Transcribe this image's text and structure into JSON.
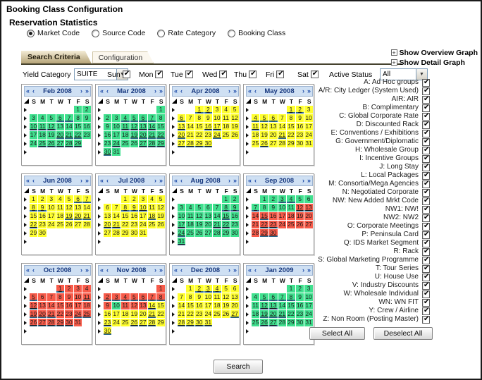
{
  "window": {
    "title": "Booking Class Configuration",
    "subtitle": "Reservation Statistics"
  },
  "radios": {
    "options": [
      {
        "label": "Market Code",
        "selected": true
      },
      {
        "label": "Source Code",
        "selected": false
      },
      {
        "label": "Rate Category",
        "selected": false
      },
      {
        "label": "Booking Class",
        "selected": false
      }
    ]
  },
  "tabs": [
    {
      "label": "Search Criteria",
      "active": true
    },
    {
      "label": "Configuration",
      "active": false
    }
  ],
  "graph_links": [
    {
      "label": "Show Overview Graph",
      "icon": "plus-box-icon"
    },
    {
      "label": "Show Detail Graph",
      "icon": "plus-box-icon"
    }
  ],
  "filters": {
    "yield_category": {
      "label": "Yield Category",
      "value": "SUITE"
    },
    "days": [
      {
        "label": "Sun",
        "checked": true
      },
      {
        "label": "Mon",
        "checked": true
      },
      {
        "label": "Tue",
        "checked": true
      },
      {
        "label": "Wed",
        "checked": true
      },
      {
        "label": "Thu",
        "checked": true
      },
      {
        "label": "Fri",
        "checked": true
      },
      {
        "label": "Sat",
        "checked": true
      }
    ],
    "active_status": {
      "label": "Active Status",
      "value": "All"
    }
  },
  "calendars": {
    "nav_icons": {
      "prev_year": "«",
      "prev_month": "‹",
      "next_month": "›",
      "next_year": "»"
    },
    "dow": [
      "S",
      "M",
      "T",
      "W",
      "T",
      "F",
      "S"
    ],
    "palette": {
      "green": "#3fe08e",
      "yellow": "#ffff2e",
      "red": "#f85b4a",
      "mark": "#2c6b8f",
      "header_bg": "#cfe0f3",
      "header_text": "#17387f"
    },
    "months": [
      {
        "title": "Feb 2008",
        "first_dow": 5,
        "days": 29,
        "ranges": [
          {
            "from": 1,
            "to": 29,
            "c": "green"
          }
        ],
        "marked": [
          6,
          7,
          10,
          11,
          12,
          20,
          21,
          22,
          25,
          26,
          27,
          28,
          29
        ]
      },
      {
        "title": "Mar 2008",
        "first_dow": 6,
        "days": 31,
        "ranges": [
          {
            "from": 1,
            "to": 31,
            "c": "green"
          }
        ],
        "marked": [
          4,
          5,
          6,
          7,
          11,
          12,
          13,
          14,
          19,
          20,
          21,
          22,
          24,
          27,
          28,
          29,
          30
        ]
      },
      {
        "title": "Apr 2008",
        "first_dow": 2,
        "days": 30,
        "ranges": [
          {
            "from": 1,
            "to": 30,
            "c": "yellow"
          }
        ],
        "marked": [
          1,
          2,
          6,
          13,
          16,
          17,
          20,
          24,
          27,
          28,
          29,
          30
        ]
      },
      {
        "title": "May 2008",
        "first_dow": 4,
        "days": 31,
        "ranges": [
          {
            "from": 1,
            "to": 31,
            "c": "yellow"
          }
        ],
        "marked": [
          1,
          2,
          4,
          5,
          6,
          11,
          21,
          26
        ]
      },
      {
        "title": "Jun 2008",
        "first_dow": 0,
        "days": 30,
        "ranges": [
          {
            "from": 1,
            "to": 30,
            "c": "yellow"
          }
        ],
        "marked": [
          6,
          7,
          8,
          9,
          19,
          20,
          21,
          22
        ]
      },
      {
        "title": "Jul 2008",
        "first_dow": 2,
        "days": 31,
        "ranges": [
          {
            "from": 1,
            "to": 31,
            "c": "yellow"
          }
        ],
        "marked": [
          8,
          9,
          10,
          18,
          20,
          21
        ]
      },
      {
        "title": "Aug 2008",
        "first_dow": 5,
        "days": 31,
        "ranges": [
          {
            "from": 1,
            "to": 31,
            "c": "green"
          }
        ],
        "marked": [
          8,
          9,
          15,
          17,
          21,
          22,
          24,
          31
        ]
      },
      {
        "title": "Sep 2008",
        "first_dow": 1,
        "days": 30,
        "ranges": [
          {
            "from": 1,
            "to": 11,
            "c": "green"
          },
          {
            "from": 12,
            "to": 30,
            "c": "red"
          }
        ],
        "marked": [
          3,
          4,
          7,
          12,
          13,
          15,
          22,
          23,
          29,
          30
        ]
      },
      {
        "title": "Oct 2008",
        "first_dow": 3,
        "days": 31,
        "ranges": [
          {
            "from": 1,
            "to": 31,
            "c": "red"
          }
        ],
        "marked": [
          1,
          5,
          11,
          12,
          19,
          20,
          21,
          24,
          25,
          26,
          27,
          28,
          29,
          30
        ]
      },
      {
        "title": "Nov 2008",
        "first_dow": 6,
        "days": 30,
        "ranges": [
          {
            "from": 1,
            "to": 9,
            "c": "red"
          },
          {
            "from": 10,
            "to": 10,
            "c": "green"
          },
          {
            "from": 11,
            "to": 13,
            "c": "red"
          },
          {
            "from": 14,
            "to": 30,
            "c": "yellow"
          }
        ],
        "marked": [
          2,
          3,
          4,
          5,
          6,
          7,
          8,
          14,
          21,
          23,
          26,
          27,
          28,
          30
        ]
      },
      {
        "title": "Dec 2008",
        "first_dow": 1,
        "days": 31,
        "ranges": [
          {
            "from": 1,
            "to": 31,
            "c": "yellow"
          }
        ],
        "marked": [
          2,
          3,
          4,
          27,
          28,
          29,
          30,
          31
        ]
      },
      {
        "title": "Jan 2009",
        "first_dow": 4,
        "days": 31,
        "ranges": [
          {
            "from": 1,
            "to": 31,
            "c": "green"
          }
        ],
        "marked": [
          5,
          6,
          7,
          8,
          12,
          13,
          19,
          20,
          21,
          26,
          27
        ]
      }
    ]
  },
  "market_codes": {
    "items": [
      {
        "label": "A: Ad Hoc groups",
        "checked": true
      },
      {
        "label": "A/R: City Ledger (System Used)",
        "checked": true
      },
      {
        "label": "AIR: AIR",
        "checked": true
      },
      {
        "label": "B: Complimentary",
        "checked": true
      },
      {
        "label": "C: Global Corporate Rate",
        "checked": true
      },
      {
        "label": "D: Discounted Rack",
        "checked": true
      },
      {
        "label": "E: Conventions / Exhibitions",
        "checked": true
      },
      {
        "label": "G: Government/Diplomatic",
        "checked": true
      },
      {
        "label": "H: Wholesale Group",
        "checked": true
      },
      {
        "label": "I: Incentive Groups",
        "checked": true
      },
      {
        "label": "J: Long Stay",
        "checked": true
      },
      {
        "label": "L: Local Packages",
        "checked": true
      },
      {
        "label": "M: Consortia/Mega Agencies",
        "checked": true
      },
      {
        "label": "N: Negotiated Corporate",
        "checked": true
      },
      {
        "label": "NW: New Added Mrkt Code",
        "checked": true
      },
      {
        "label": "NW1: NW!",
        "checked": true
      },
      {
        "label": "NW2: NW2",
        "checked": true
      },
      {
        "label": "O: Corporate Meetings",
        "checked": true
      },
      {
        "label": "P: Peninsula Card",
        "checked": true
      },
      {
        "label": "Q: IDS Market Segment",
        "checked": true
      },
      {
        "label": "R: Rack",
        "checked": true
      },
      {
        "label": "S: Global Marketing Programme",
        "checked": true
      },
      {
        "label": "T: Tour Series",
        "checked": true
      },
      {
        "label": "U: House Use",
        "checked": true
      },
      {
        "label": "V: Industry Discounts",
        "checked": true
      },
      {
        "label": "W: Wholesale Individual",
        "checked": true
      },
      {
        "label": "WN: WN FIT",
        "checked": true
      },
      {
        "label": "Y: Crew / Airline",
        "checked": true
      },
      {
        "label": "Z: Non Room (Posting Master)",
        "checked": true
      }
    ],
    "select_all_label": "Select All",
    "deselect_all_label": "Deselect All"
  },
  "search_button_label": "Search"
}
